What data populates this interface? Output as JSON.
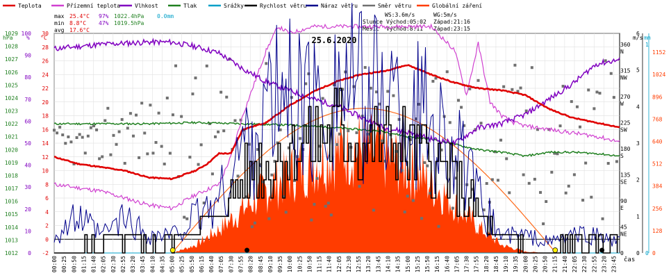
{
  "legend": [
    {
      "label": "Teplota",
      "color": "#e00000"
    },
    {
      "label": "Přízemní teplota",
      "color": "#d040d0"
    },
    {
      "label": "Vlhkost",
      "color": "#8000c0"
    },
    {
      "label": "Tlak",
      "color": "#208020"
    },
    {
      "label": "Srážky",
      "color": "#00a0c8"
    },
    {
      "label": "Rychlost větru",
      "color": "#000000"
    },
    {
      "label": "Náraz větru",
      "color": "#00008b"
    },
    {
      "label": "Směr větru",
      "color": "#707070"
    },
    {
      "label": "Globální záření",
      "color": "#ff3c00"
    }
  ],
  "stats": {
    "max": {
      "label": "max",
      "temp": "25.4°C",
      "hum": "97%",
      "press": "1022.4hPa",
      "rain": "0.0mm"
    },
    "min": {
      "label": "min",
      "temp": "8.8°C",
      "hum": "47%",
      "press": "1019.5hPa"
    },
    "avg": {
      "label": "avg",
      "temp": "17.6°C"
    }
  },
  "info": {
    "ws": "WS:3.6m/s",
    "wg": "WG:5m/s",
    "sun_label": "Slunce",
    "sunrise": "Východ:05:02",
    "sunset": "Západ:21:16",
    "moon_label": "Měsíc",
    "moonrise": "Východ:8:11",
    "moonset": "Západ:23:15"
  },
  "chart_data": {
    "type": "line",
    "title": "25.6.2020",
    "xlabel": "čas",
    "x_ticks": [
      "00:00",
      "00:25",
      "00:50",
      "01:15",
      "01:40",
      "02:05",
      "02:30",
      "02:55",
      "03:20",
      "03:45",
      "04:10",
      "04:35",
      "05:00",
      "05:25",
      "05:50",
      "06:15",
      "06:40",
      "07:05",
      "07:30",
      "07:55",
      "08:20",
      "08:45",
      "09:10",
      "09:35",
      "10:00",
      "10:25",
      "10:50",
      "11:15",
      "11:40",
      "12:05",
      "12:30",
      "12:55",
      "13:20",
      "13:45",
      "14:10",
      "14:35",
      "15:00",
      "15:25",
      "15:50",
      "16:15",
      "16:40",
      "17:05",
      "17:30",
      "17:55",
      "18:20",
      "18:45",
      "19:10",
      "19:35",
      "20:00",
      "20:25",
      "20:50",
      "21:15",
      "21:40",
      "22:05",
      "22:30",
      "22:55",
      "23:20",
      "23:45"
    ],
    "axes": {
      "hpa": {
        "label": "hPa",
        "color": "#208020",
        "ticks": [
          1012,
          1013,
          1014,
          1015,
          1016,
          1017,
          1018,
          1019,
          1020,
          1021,
          1022,
          1023,
          1024,
          1025,
          1026,
          1027,
          1028,
          1029
        ]
      },
      "pct": {
        "label": "%",
        "color": "#8000c0",
        "ticks": [
          0,
          10,
          20,
          30,
          40,
          50,
          60,
          70,
          80,
          90,
          100
        ]
      },
      "temp": {
        "label": "°C",
        "color": "#e00000",
        "ticks": [
          -2,
          0,
          2,
          4,
          6,
          8,
          10,
          12,
          14,
          16,
          18,
          20,
          22,
          24,
          26,
          28,
          30
        ]
      },
      "dir": {
        "labels": [
          "0",
          "45 NE",
          "90 E",
          "135 SE",
          "180 S",
          "225 SW",
          "270 W",
          "315 NW",
          "360 N"
        ],
        "values": [
          0,
          45,
          90,
          135,
          180,
          225,
          270,
          315,
          360
        ]
      },
      "ms": {
        "label": "m/s",
        "ticks": [
          0,
          1,
          2,
          3,
          4,
          5,
          6
        ]
      },
      "mm": {
        "label": "mm",
        "ticks": [
          0,
          1
        ]
      },
      "wm2": {
        "ticks": [
          0,
          128,
          256,
          384,
          512,
          640,
          768,
          896,
          1024,
          1152
        ]
      }
    },
    "x_range_hours": [
      0,
      24
    ],
    "series": [
      {
        "name": "Teplota",
        "unit": "°C",
        "color": "#e00000",
        "x": [
          0,
          1,
          2,
          3,
          4,
          5,
          6,
          6.5,
          7,
          7.5,
          8,
          9,
          10,
          11,
          12,
          13,
          14,
          15,
          16,
          17,
          18,
          19,
          20,
          21,
          22,
          23,
          24
        ],
        "y": [
          12,
          11,
          10.5,
          10,
          9,
          8.8,
          10,
          11,
          12.5,
          12.5,
          16,
          17,
          19.5,
          21.5,
          23,
          24,
          24.5,
          25.4,
          24,
          22.8,
          22,
          21.7,
          21,
          19,
          17.7,
          17,
          16.3
        ]
      },
      {
        "name": "Přízemní teplota",
        "unit": "°C",
        "color": "#d040d0",
        "x": [
          0,
          1,
          2,
          3,
          4,
          5,
          6,
          7,
          7.5,
          8,
          9,
          9.5,
          10,
          11,
          12,
          13,
          14,
          15,
          16,
          17,
          17.5,
          18,
          18.5,
          19,
          19.5,
          20,
          21,
          22,
          23,
          24
        ],
        "y": [
          8,
          7.5,
          7,
          6,
          5,
          4.5,
          6.5,
          8,
          12,
          18,
          27.5,
          31,
          30,
          31,
          31,
          31,
          31,
          31,
          31,
          27.5,
          21,
          28.5,
          20,
          18,
          17,
          16.5,
          16,
          15.5,
          15,
          14.2
        ]
      },
      {
        "name": "Vlhkost",
        "unit": "%",
        "color": "#8000c0",
        "x": [
          0,
          2,
          4,
          5,
          6,
          7,
          8,
          9,
          10,
          11,
          12,
          13,
          14,
          15,
          16,
          17,
          18,
          19,
          20,
          21,
          22,
          23,
          24
        ],
        "y": [
          93,
          95,
          96,
          96,
          94,
          91,
          84,
          78,
          74,
          70,
          67,
          62,
          57,
          55,
          52,
          50,
          57,
          59,
          63,
          70,
          77,
          86,
          88
        ]
      },
      {
        "name": "Tlak",
        "unit": "hPa",
        "color": "#208020",
        "x": [
          0,
          2,
          4,
          6,
          8,
          10,
          12,
          14,
          15,
          16,
          17,
          18,
          19,
          20,
          21,
          22,
          23,
          24
        ],
        "y": [
          1022,
          1022,
          1022,
          1022.1,
          1022,
          1021.9,
          1021.7,
          1021.4,
          1021,
          1020.8,
          1020.4,
          1020,
          1019.8,
          1019.5,
          1019.8,
          1019.8,
          1019.7,
          1019.5
        ]
      },
      {
        "name": "Srážky",
        "unit": "mm",
        "color": "#00a0c8",
        "x": [
          0,
          24
        ],
        "y": [
          0,
          0
        ]
      },
      {
        "name": "Rychlost větru",
        "unit": "m/s",
        "color": "#000000",
        "x": [
          0,
          2,
          4,
          5,
          6,
          7,
          8,
          9,
          10,
          11,
          12,
          13,
          14,
          15,
          16,
          17,
          18,
          19,
          20,
          21,
          22,
          23,
          24
        ],
        "y": [
          0,
          0.3,
          0.2,
          0.3,
          0.8,
          1,
          2,
          2.5,
          2.8,
          3,
          3.5,
          3,
          3,
          2.8,
          2.6,
          2,
          1,
          0.4,
          0.2,
          0.1,
          0.3,
          0.2,
          0.3
        ]
      },
      {
        "name": "Náraz větru",
        "unit": "m/s",
        "color": "#00008b",
        "x": [
          0,
          1,
          2,
          3,
          4,
          5,
          6,
          7,
          8,
          9,
          10,
          11,
          12,
          13,
          14,
          15,
          16,
          17,
          18,
          19,
          20,
          21,
          22,
          23,
          24
        ],
        "y": [
          0.5,
          1,
          0.5,
          1,
          0.5,
          0.5,
          1,
          1.5,
          3,
          4,
          4.5,
          4,
          5,
          4.5,
          4.5,
          4,
          4,
          3,
          1.5,
          0.5,
          0.5,
          0.3,
          0.5,
          0.5,
          0.3
        ]
      },
      {
        "name": "Globální záření",
        "unit": "W/m²",
        "color": "#ff3c00",
        "x": [
          5,
          6,
          7,
          8,
          9,
          10,
          11,
          12,
          13,
          14,
          15,
          16,
          17,
          18,
          19,
          20,
          21
        ],
        "y": [
          0,
          60,
          180,
          330,
          480,
          600,
          700,
          780,
          800,
          750,
          660,
          540,
          380,
          200,
          60,
          10,
          0
        ]
      }
    ]
  }
}
